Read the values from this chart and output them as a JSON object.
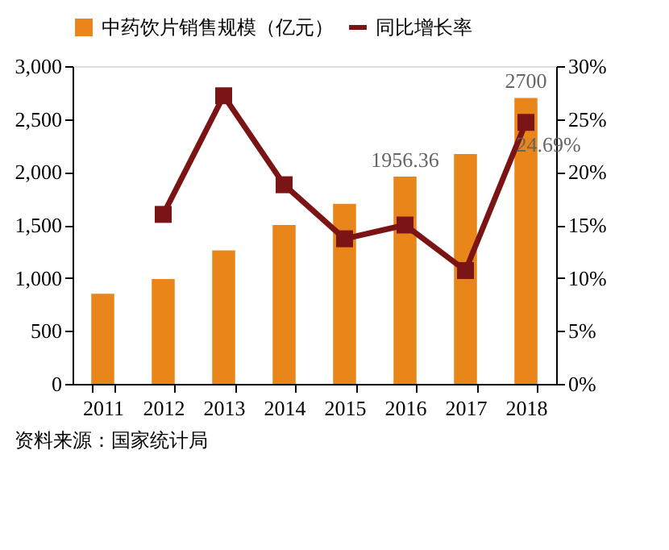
{
  "chart_data": {
    "type": "bar",
    "categories": [
      "2011",
      "2012",
      "2013",
      "2014",
      "2015",
      "2016",
      "2017",
      "2018"
    ],
    "series": [
      {
        "name": "中药饮片销售规模（亿元）",
        "color": "#e8861a",
        "values": [
          850,
          990,
          1260,
          1500,
          1700,
          1956.36,
          2170,
          2700
        ],
        "value_labels": [
          null,
          null,
          null,
          null,
          null,
          "1956.36",
          null,
          "2700"
        ]
      },
      {
        "name": "同比增长率",
        "type": "line",
        "axis": "y2",
        "color": "#7b1414",
        "marker": "square",
        "values": [
          null,
          16,
          27.2,
          18.8,
          13.7,
          15,
          10.7,
          24.69
        ],
        "value_labels": [
          null,
          null,
          null,
          null,
          null,
          null,
          null,
          "24.69%"
        ]
      }
    ],
    "ylim": [
      0,
      3000
    ],
    "yticks": [
      {
        "value": 0,
        "label": "0"
      },
      {
        "value": 500,
        "label": "500"
      },
      {
        "value": 1000,
        "label": "1,000"
      },
      {
        "value": 1500,
        "label": "1,500"
      },
      {
        "value": 2000,
        "label": "2,000"
      },
      {
        "value": 2500,
        "label": "2,500"
      },
      {
        "value": 3000,
        "label": "3,000"
      }
    ],
    "y2lim": [
      0,
      30
    ],
    "y2ticks": [
      {
        "value": 0,
        "label": "0%"
      },
      {
        "value": 5,
        "label": "5%"
      },
      {
        "value": 10,
        "label": "10%"
      },
      {
        "value": 15,
        "label": "15%"
      },
      {
        "value": 20,
        "label": "20%"
      },
      {
        "value": 25,
        "label": "25%"
      },
      {
        "value": 30,
        "label": "30%"
      }
    ],
    "grid": false,
    "legend": "top",
    "annotations": [
      "资料来源：国家统计局"
    ]
  }
}
